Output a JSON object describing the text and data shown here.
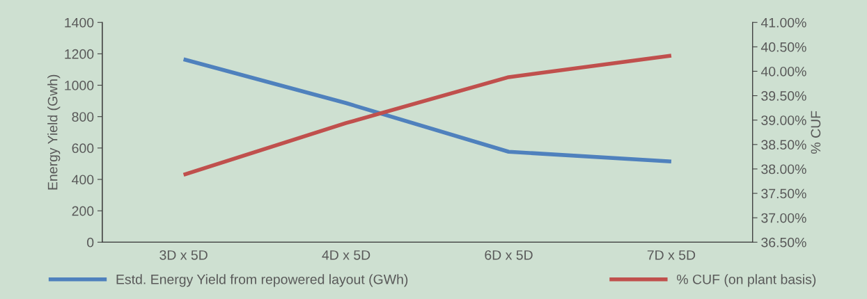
{
  "chart_data": {
    "type": "line",
    "ylabel": "Energy Yield (Gwh)",
    "y2label": "% CUF",
    "categories": [
      "3D x 5D",
      "4D x 5D",
      "6D x 5D",
      "7D x 5D"
    ],
    "series": [
      {
        "name": "Estd. Energy Yield from repowered layout (GWh)",
        "color": "#4f81bd",
        "values": [
          1165,
          886,
          576,
          514
        ]
      },
      {
        "name": "% CUF (on plant basis)",
        "color": "#c0504d",
        "values": [
          37.88,
          38.94,
          39.88,
          40.32
        ],
        "axis": "y2"
      }
    ],
    "ylim": [
      0,
      1400
    ],
    "yticks": [
      0,
      200,
      400,
      600,
      800,
      1000,
      1200,
      1400
    ],
    "y2lim": [
      36.5,
      41.0
    ],
    "y2ticks": [
      {
        "value": 36.5,
        "label": "36.50%"
      },
      {
        "value": 37.0,
        "label": "37.00%"
      },
      {
        "value": 37.5,
        "label": "37.50%"
      },
      {
        "value": 38.0,
        "label": "38.00%"
      },
      {
        "value": 38.5,
        "label": "38.50%"
      },
      {
        "value": 39.0,
        "label": "39.00%"
      },
      {
        "value": 39.5,
        "label": "39.50%"
      },
      {
        "value": 40.0,
        "label": "40.00%"
      },
      {
        "value": 40.5,
        "label": "40.50%"
      },
      {
        "value": 41.0,
        "label": "41.00%"
      }
    ],
    "grid": false,
    "legend": "bottom",
    "marker": "none",
    "line_style": "solid"
  }
}
